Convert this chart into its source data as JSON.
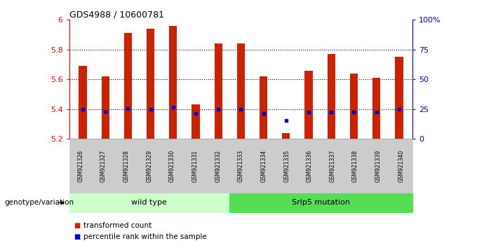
{
  "title": "GDS4988 / 10600781",
  "samples": [
    "GSM921326",
    "GSM921327",
    "GSM921328",
    "GSM921329",
    "GSM921330",
    "GSM921331",
    "GSM921332",
    "GSM921333",
    "GSM921334",
    "GSM921335",
    "GSM921336",
    "GSM921337",
    "GSM921338",
    "GSM921339",
    "GSM921340"
  ],
  "bar_values": [
    5.69,
    5.62,
    5.91,
    5.94,
    5.96,
    5.43,
    5.84,
    5.84,
    5.62,
    5.24,
    5.66,
    5.77,
    5.64,
    5.61,
    5.75
  ],
  "blue_values": [
    5.4,
    5.385,
    5.402,
    5.401,
    5.412,
    5.372,
    5.401,
    5.4,
    5.372,
    5.325,
    5.381,
    5.382,
    5.381,
    5.38,
    5.4
  ],
  "bar_color": "#cc2200",
  "blue_color": "#0000cc",
  "ymin": 5.2,
  "ymax": 6.0,
  "yticks": [
    5.2,
    5.4,
    5.6,
    5.8,
    6.0
  ],
  "ytick_labels": [
    "5.2",
    "5.4",
    "5.6",
    "5.8",
    "6"
  ],
  "right_yticks": [
    0,
    25,
    50,
    75,
    100
  ],
  "right_ytick_labels": [
    "0",
    "25",
    "50",
    "75",
    "100%"
  ],
  "dotted_lines": [
    5.4,
    5.6,
    5.8
  ],
  "wild_type_count": 7,
  "wild_type_label": "wild type",
  "mutation_label": "Srlp5 mutation",
  "genotype_label": "genotype/variation",
  "legend_bar_label": "transformed count",
  "legend_blue_label": "percentile rank within the sample",
  "bar_width": 0.35,
  "wt_fill": "#ccffcc",
  "mut_fill": "#55dd55"
}
